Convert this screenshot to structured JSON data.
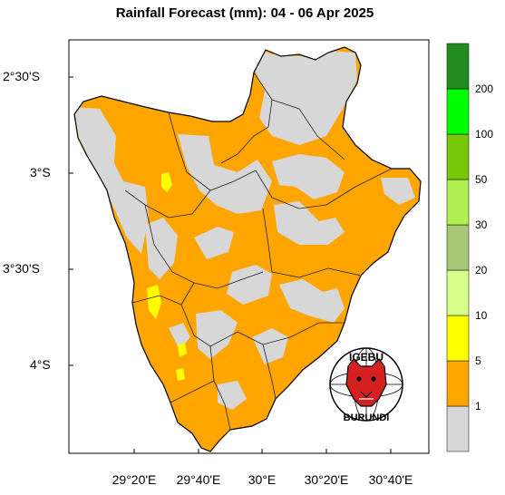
{
  "title": "Rainfall Forecast (mm): 04 - 06 Apr 2025",
  "y_axis": {
    "ticks": [
      "2°30'S",
      "3°S",
      "3°30'S",
      "4°S"
    ]
  },
  "x_axis": {
    "ticks": [
      "29°20'E",
      "29°40'E",
      "30°E",
      "30°20'E",
      "30°40'E"
    ]
  },
  "legend": {
    "classes": [
      {
        "label": "",
        "color": "#d7d7d7",
        "range": "<1"
      },
      {
        "label": "1",
        "color": "#ffa500",
        "range": "1-5"
      },
      {
        "label": "5",
        "color": "#ffff00",
        "range": "5-10"
      },
      {
        "label": "10",
        "color": "#d8ff8a",
        "range": "10-20"
      },
      {
        "label": "20",
        "color": "#b6f27a",
        "range": "20-30"
      },
      {
        "label": "30",
        "color": "#9dc46c",
        "range": "30-50"
      },
      {
        "label": "50",
        "color": "#74d90f",
        "range": "50-100"
      },
      {
        "label": "100",
        "color": "#4fc100",
        "range": "100-200"
      },
      {
        "label": "200",
        "color": "#00ff00",
        "range": "200-"
      },
      {
        "label": "",
        "color": "#228b22",
        "range": "top"
      }
    ],
    "tick_labels": [
      "1",
      "5",
      "10",
      "20",
      "30",
      "50",
      "100",
      "200"
    ]
  },
  "logo": {
    "text_top": "IGEBU",
    "text_bottom": "BURUNDI"
  },
  "colors": {
    "dry": "#d7d7d7",
    "light_rain": "#ffa500",
    "moderate": "#ffff00",
    "border": "#000000"
  }
}
